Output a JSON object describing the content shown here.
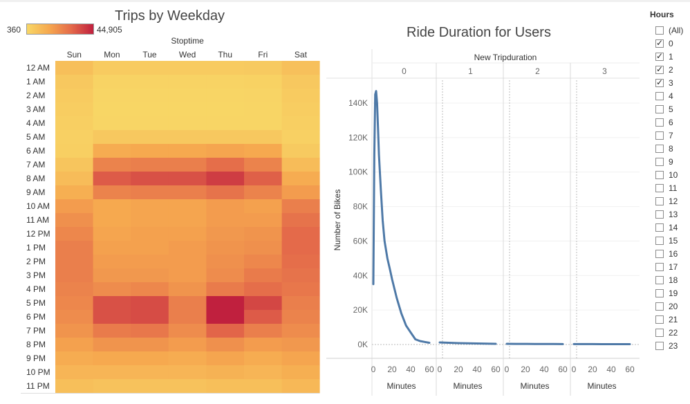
{
  "heatmap": {
    "title": "Trips by Weekday",
    "legend_min": "360",
    "legend_max": "44,905",
    "column_header": "Stoptime",
    "colors": [
      "#f8d766",
      "#f6a84f",
      "#e46a4a",
      "#c0203e"
    ]
  },
  "duration": {
    "title": "Ride Duration for Users",
    "column_header": "New Tripduration",
    "line_color": "#4e79a7"
  },
  "filter": {
    "title": "Hours",
    "options": [
      {
        "label": "(All)",
        "checked": false
      },
      {
        "label": "0",
        "checked": true
      },
      {
        "label": "1",
        "checked": true
      },
      {
        "label": "2",
        "checked": true
      },
      {
        "label": "3",
        "checked": true
      },
      {
        "label": "4",
        "checked": false
      },
      {
        "label": "5",
        "checked": false
      },
      {
        "label": "6",
        "checked": false
      },
      {
        "label": "7",
        "checked": false
      },
      {
        "label": "8",
        "checked": false
      },
      {
        "label": "9",
        "checked": false
      },
      {
        "label": "10",
        "checked": false
      },
      {
        "label": "11",
        "checked": false
      },
      {
        "label": "12",
        "checked": false
      },
      {
        "label": "13",
        "checked": false
      },
      {
        "label": "14",
        "checked": false
      },
      {
        "label": "15",
        "checked": false
      },
      {
        "label": "16",
        "checked": false
      },
      {
        "label": "17",
        "checked": false
      },
      {
        "label": "18",
        "checked": false
      },
      {
        "label": "19",
        "checked": false
      },
      {
        "label": "20",
        "checked": false
      },
      {
        "label": "21",
        "checked": false
      },
      {
        "label": "22",
        "checked": false
      },
      {
        "label": "23",
        "checked": false
      }
    ]
  },
  "chart_data": [
    {
      "type": "heatmap",
      "title": "Trips by Weekday",
      "xlabel": "Stoptime",
      "x_categories": [
        "Sun",
        "Mon",
        "Tue",
        "Wed",
        "Thu",
        "Fri",
        "Sat"
      ],
      "y_categories": [
        "12 AM",
        "1 AM",
        "2 AM",
        "3 AM",
        "4 AM",
        "5 AM",
        "6 AM",
        "7 AM",
        "8 AM",
        "9 AM",
        "10 AM",
        "11 AM",
        "12 PM",
        "1 PM",
        "2 PM",
        "3 PM",
        "4 PM",
        "5 PM",
        "6 PM",
        "7 PM",
        "8 PM",
        "9 PM",
        "10 PM",
        "11 PM"
      ],
      "color_range": [
        360,
        44905
      ],
      "values": [
        [
          8000,
          4000,
          4000,
          4000,
          4000,
          4500,
          7500
        ],
        [
          5000,
          1500,
          1500,
          1500,
          1500,
          2000,
          5000
        ],
        [
          4000,
          1000,
          1000,
          1000,
          1000,
          1200,
          4000
        ],
        [
          3500,
          800,
          800,
          800,
          800,
          1000,
          3500
        ],
        [
          3000,
          1000,
          1000,
          1000,
          1000,
          1100,
          3000
        ],
        [
          2500,
          5000,
          5000,
          5000,
          5000,
          5000,
          2500
        ],
        [
          3000,
          14000,
          15000,
          15000,
          16000,
          15000,
          4500
        ],
        [
          6000,
          24000,
          25000,
          25000,
          29000,
          24000,
          9000
        ],
        [
          9000,
          33000,
          35000,
          35000,
          39000,
          32000,
          14000
        ],
        [
          13000,
          24000,
          25000,
          25000,
          28000,
          24000,
          18000
        ],
        [
          18000,
          15000,
          16000,
          16000,
          18000,
          17000,
          25000
        ],
        [
          21000,
          15000,
          16000,
          16000,
          18000,
          18000,
          28000
        ],
        [
          23000,
          16000,
          17000,
          17000,
          19000,
          20000,
          30000
        ],
        [
          25000,
          17000,
          17000,
          18000,
          20000,
          21000,
          30000
        ],
        [
          25000,
          18000,
          18000,
          18000,
          21000,
          23000,
          29000
        ],
        [
          25000,
          19000,
          19000,
          18000,
          22000,
          26000,
          28000
        ],
        [
          24000,
          22000,
          23000,
          20000,
          26000,
          29000,
          27000
        ],
        [
          23000,
          35000,
          36000,
          25000,
          44905,
          37000,
          25000
        ],
        [
          22000,
          35000,
          36000,
          25000,
          44905,
          33000,
          24000
        ],
        [
          20000,
          26000,
          27000,
          22000,
          31000,
          25000,
          22000
        ],
        [
          17000,
          20000,
          20000,
          18000,
          21000,
          18000,
          19000
        ],
        [
          14000,
          15000,
          15000,
          14000,
          16000,
          14000,
          16000
        ],
        [
          11000,
          11000,
          11000,
          11000,
          12000,
          11000,
          13000
        ],
        [
          8000,
          7000,
          7000,
          7000,
          8000,
          8000,
          10000
        ]
      ]
    },
    {
      "type": "line",
      "title": "Ride Duration for Users",
      "column_header": "New Tripduration",
      "panels": [
        "0",
        "1",
        "2",
        "3"
      ],
      "xlabel": "Minutes",
      "ylabel": "Number of Bikes",
      "xlim": [
        0,
        60
      ],
      "x_ticks": [
        0,
        20,
        40,
        60
      ],
      "ylim": [
        0,
        140000
      ],
      "y_ticks": [
        "0K",
        "20K",
        "40K",
        "60K",
        "80K",
        "100K",
        "120K",
        "140K"
      ],
      "y_tick_values": [
        0,
        20000,
        40000,
        60000,
        80000,
        100000,
        120000,
        140000
      ],
      "series": [
        {
          "panel": "0",
          "x": [
            0,
            1,
            2,
            3,
            4,
            5,
            6,
            8,
            10,
            12,
            15,
            18,
            20,
            25,
            30,
            35,
            40,
            45,
            50,
            55,
            60
          ],
          "y": [
            35000,
            110000,
            145000,
            147000,
            140000,
            125000,
            110000,
            90000,
            72000,
            60000,
            50000,
            43000,
            38000,
            27000,
            18000,
            11000,
            7000,
            3000,
            2000,
            1500,
            1000
          ]
        },
        {
          "panel": "1",
          "x": [
            0,
            10,
            20,
            30,
            40,
            50,
            60
          ],
          "y": [
            1200,
            1000,
            800,
            700,
            600,
            500,
            400
          ]
        },
        {
          "panel": "2",
          "x": [
            0,
            10,
            20,
            30,
            40,
            50,
            60
          ],
          "y": [
            400,
            380,
            350,
            330,
            300,
            280,
            260
          ]
        },
        {
          "panel": "3",
          "x": [
            0,
            10,
            20,
            30,
            40,
            50,
            60
          ],
          "y": [
            250,
            240,
            230,
            220,
            210,
            200,
            190
          ]
        }
      ]
    }
  ]
}
